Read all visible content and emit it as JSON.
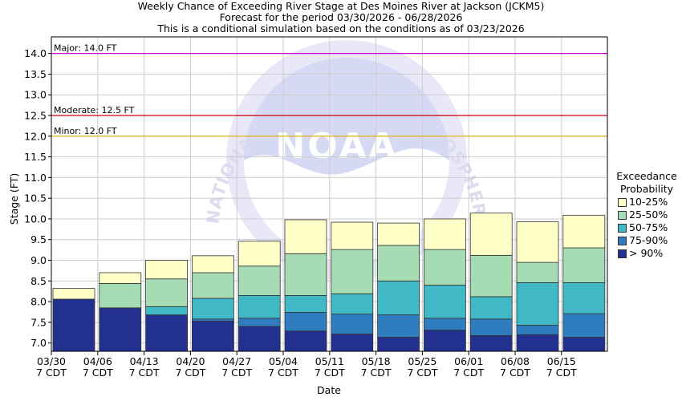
{
  "title_lines": [
    "Weekly Chance of Exceeding River Stage at Des Moines River at Jackson (JCKM5)",
    "Forecast for the period 03/30/2026 - 06/28/2026",
    "This is a conditional simulation based on the conditions as of 03/23/2026"
  ],
  "chart_data": {
    "type": "bar",
    "stacked_ranges": true,
    "xlabel": "Date",
    "ylabel": "Stage (FT)",
    "ylim": [
      6.8,
      14.4
    ],
    "yticks": [
      "7.0",
      "7.5",
      "8.0",
      "8.5",
      "9.0",
      "9.5",
      "10.0",
      "10.5",
      "11.0",
      "11.5",
      "12.0",
      "12.5",
      "13.0",
      "13.5",
      "14.0"
    ],
    "categories": [
      [
        "03/30",
        "7 CDT"
      ],
      [
        "04/06",
        "7 CDT"
      ],
      [
        "04/13",
        "7 CDT"
      ],
      [
        "04/20",
        "7 CDT"
      ],
      [
        "04/27",
        "7 CDT"
      ],
      [
        "05/04",
        "7 CDT"
      ],
      [
        "05/11",
        "7 CDT"
      ],
      [
        "05/18",
        "7 CDT"
      ],
      [
        "05/25",
        "7 CDT"
      ],
      [
        "06/01",
        "7 CDT"
      ],
      [
        "06/08",
        "7 CDT"
      ],
      [
        "06/15",
        "7 CDT"
      ]
    ],
    "boundaries": [
      [
        6.8,
        8.06,
        8.06,
        8.06,
        8.06,
        8.32
      ],
      [
        6.8,
        7.85,
        7.85,
        7.85,
        8.44,
        8.7
      ],
      [
        6.8,
        7.68,
        7.68,
        7.88,
        8.55,
        9.0
      ],
      [
        6.8,
        7.53,
        7.58,
        8.08,
        8.7,
        9.11
      ],
      [
        6.8,
        7.4,
        7.6,
        8.15,
        8.86,
        9.46
      ],
      [
        6.8,
        7.29,
        7.74,
        8.15,
        9.16,
        9.98
      ],
      [
        6.8,
        7.22,
        7.7,
        8.19,
        9.26,
        9.92
      ],
      [
        6.8,
        7.14,
        7.68,
        8.5,
        9.36,
        9.9
      ],
      [
        6.8,
        7.31,
        7.6,
        8.4,
        9.26,
        10.0
      ],
      [
        6.8,
        7.18,
        7.58,
        8.12,
        9.12,
        10.14
      ],
      [
        6.8,
        7.2,
        7.43,
        8.46,
        8.95,
        9.93
      ],
      [
        6.8,
        7.14,
        7.71,
        8.46,
        9.3,
        10.09
      ]
    ],
    "series": [
      {
        "name": "> 90%",
        "color": "#22318f"
      },
      {
        "name": "75-90%",
        "color": "#2f7dbf"
      },
      {
        "name": "50-75%",
        "color": "#40b8c6"
      },
      {
        "name": "25-50%",
        "color": "#a6dcb4"
      },
      {
        "name": "10-25%",
        "color": "#ffffc8"
      }
    ],
    "reference_lines": [
      {
        "label": "Major: 14.0 FT",
        "value": 14.0,
        "color": "#cc00cc"
      },
      {
        "label": "Moderate: 12.5 FT",
        "value": 12.5,
        "color": "#cc0000"
      },
      {
        "label": "Minor: 12.0 FT",
        "value": 12.0,
        "color": "#e0b000"
      }
    ],
    "grid": true,
    "legend": {
      "title_lines": [
        "Exceedance",
        "Probability"
      ],
      "placement": "right"
    }
  },
  "watermark": {
    "logo_text": "NOAA",
    "ring_text": "NATIONAL OCEANIC AND ATMOSPHERIC ADMINISTRATION"
  }
}
